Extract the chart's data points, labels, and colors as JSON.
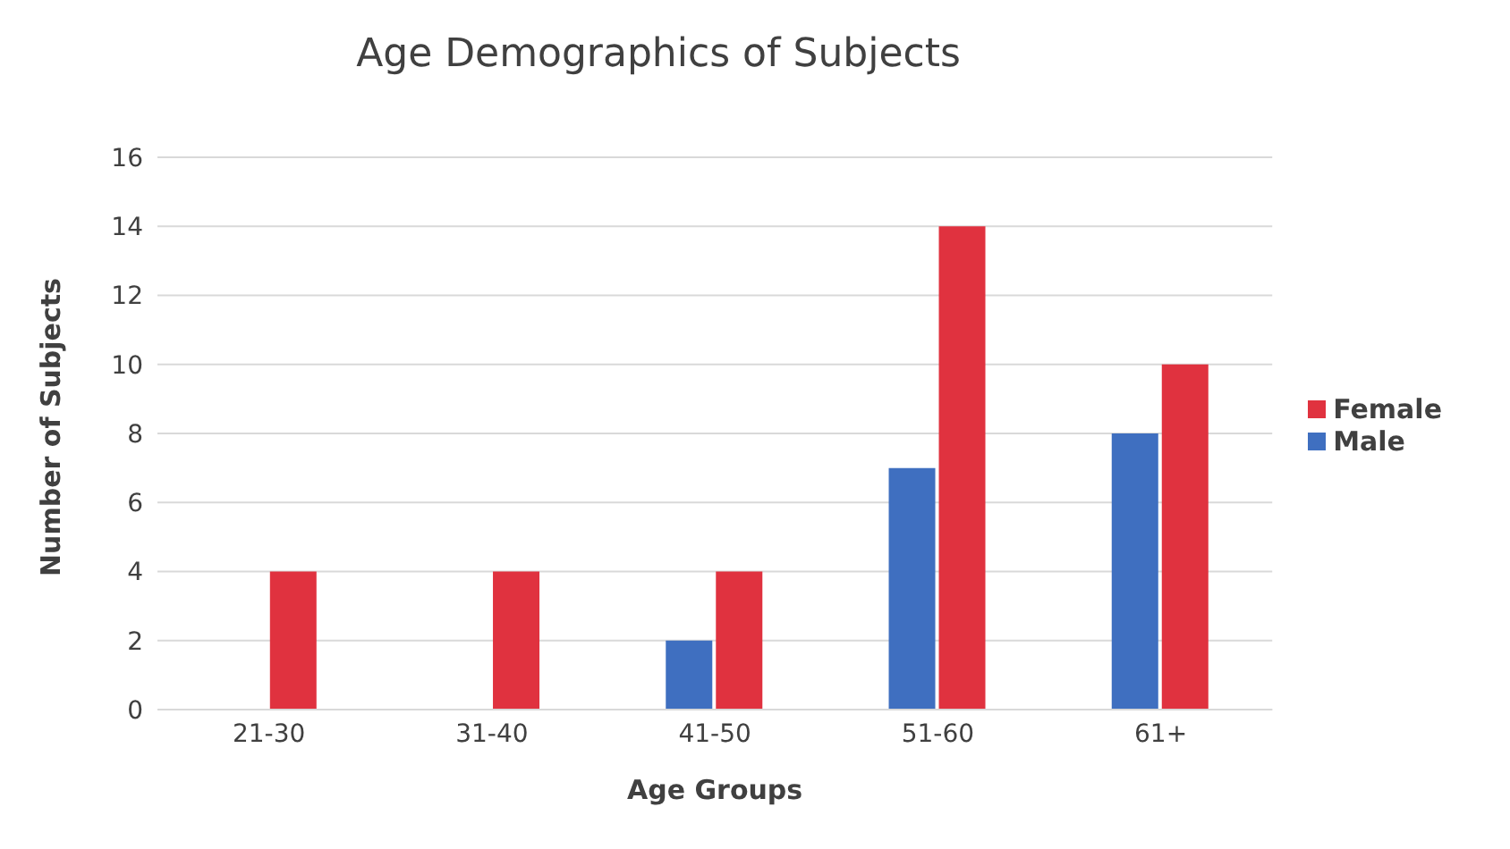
{
  "chart_data": {
    "type": "bar",
    "title": "Age Demographics of Subjects",
    "xlabel": "Age Groups",
    "ylabel": "Number of Subjects",
    "categories": [
      "21-30",
      "31-40",
      "41-50",
      "51-60",
      "61+"
    ],
    "series": [
      {
        "name": "Male",
        "color": "#3f6fc0",
        "values": [
          0,
          0,
          2,
          7,
          8
        ]
      },
      {
        "name": "Female",
        "color": "#e0323f",
        "values": [
          4,
          4,
          4,
          14,
          10
        ]
      }
    ],
    "ylim": [
      0,
      16
    ],
    "yticks": [
      0,
      2,
      4,
      6,
      8,
      10,
      12,
      14,
      16
    ],
    "grid": "y",
    "legend": "right"
  }
}
